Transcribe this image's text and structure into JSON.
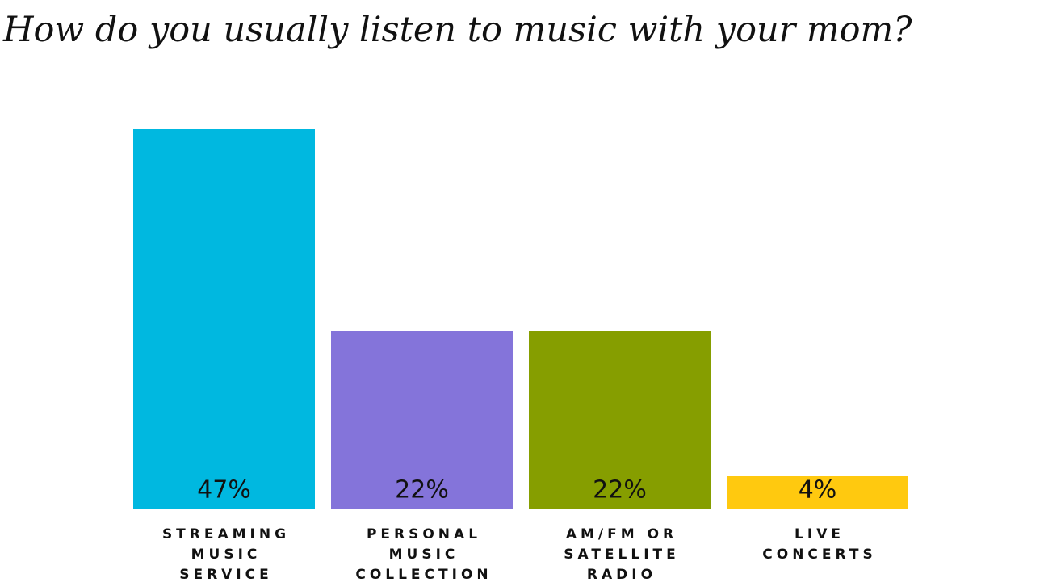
{
  "chart_data": {
    "type": "bar",
    "title": "How do you usually listen to music with your mom?",
    "categories": [
      [
        "STREAMING",
        "MUSIC",
        "SERVICE"
      ],
      [
        "PERSONAL",
        "MUSIC",
        "COLLECTION"
      ],
      [
        "AM/FM OR",
        "SATELLITE",
        "RADIO"
      ],
      [
        "LIVE",
        "CONCERTS"
      ]
    ],
    "values": [
      47,
      22,
      22,
      4
    ],
    "value_labels": [
      "47%",
      "22%",
      "22%",
      "4%"
    ],
    "colors": [
      "#00b8e0",
      "#8474da",
      "#869e00",
      "#ffc90f"
    ]
  }
}
